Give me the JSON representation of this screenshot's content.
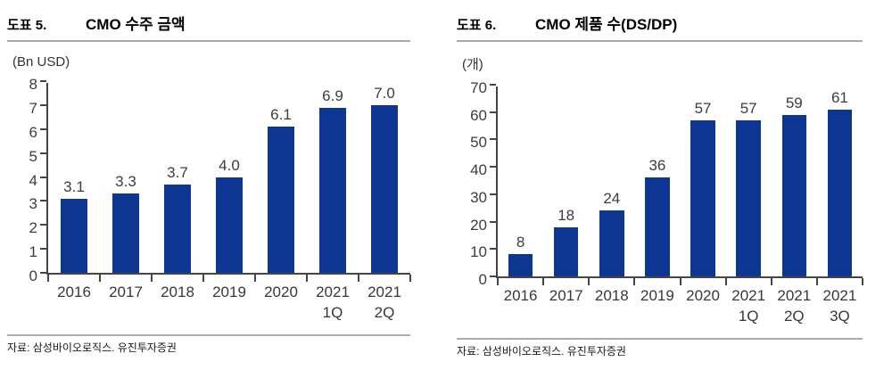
{
  "panels": [
    {
      "label": "도표 5.",
      "title": "CMO 수주 금액",
      "unit": "(Bn USD)",
      "source": "자료: 삼성바이오로직스. 유진투자증권"
    },
    {
      "label": "도표 6.",
      "title": "CMO 제품 수(DS/DP)",
      "unit": "(개)",
      "source": "자료: 삼성바이오로직스. 유진투자증권"
    }
  ],
  "chart_data": [
    {
      "type": "bar",
      "title": "CMO 수주 금액",
      "categories": [
        "2016",
        "2017",
        "2018",
        "2019",
        "2020",
        "2021 1Q",
        "2021 2Q"
      ],
      "values": [
        3.1,
        3.3,
        3.7,
        4.0,
        6.1,
        6.9,
        7.0
      ],
      "value_labels": [
        "3.1",
        "3.3",
        "3.7",
        "4.0",
        "6.1",
        "6.9",
        "7.0"
      ],
      "xlabel": "",
      "ylabel": "(Bn USD)",
      "ylim": [
        0,
        8
      ],
      "ytick_step": 1,
      "bar_color": "#0d3692",
      "grid": false,
      "legend": "none"
    },
    {
      "type": "bar",
      "title": "CMO 제품 수(DS/DP)",
      "categories": [
        "2016",
        "2017",
        "2018",
        "2019",
        "2020",
        "2021 1Q",
        "2021 2Q",
        "2021 3Q"
      ],
      "values": [
        8,
        18,
        24,
        36,
        57,
        57,
        59,
        61
      ],
      "value_labels": [
        "8",
        "18",
        "24",
        "36",
        "57",
        "57",
        "59",
        "61"
      ],
      "xlabel": "",
      "ylabel": "(개)",
      "ylim": [
        0,
        70
      ],
      "ytick_step": 10,
      "bar_color": "#0d3692",
      "grid": false,
      "legend": "none"
    }
  ]
}
